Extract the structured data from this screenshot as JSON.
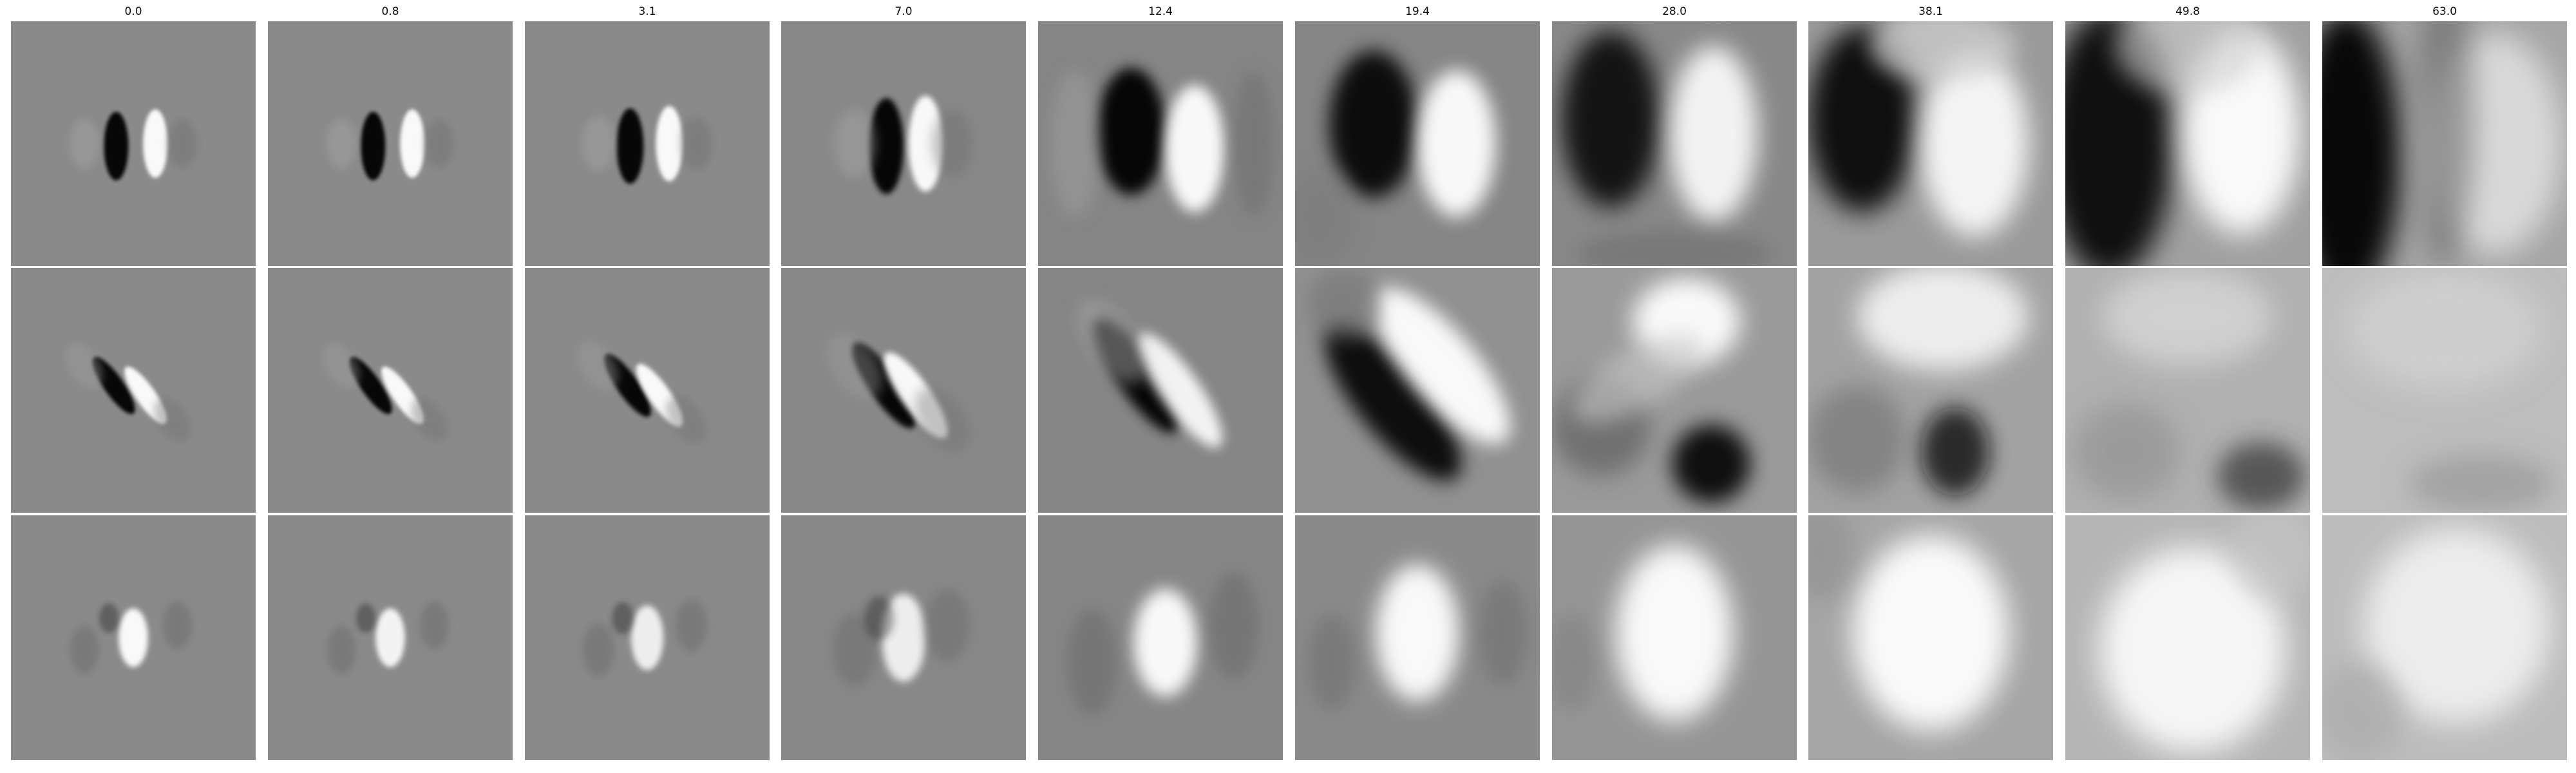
{
  "figure": {
    "column_labels": [
      "0.0",
      "0.8",
      "3.1",
      "7.0",
      "12.4",
      "19.4",
      "28.0",
      "38.1",
      "49.8",
      "63.0"
    ],
    "row_count": 3,
    "colormap": "grayscale"
  }
}
